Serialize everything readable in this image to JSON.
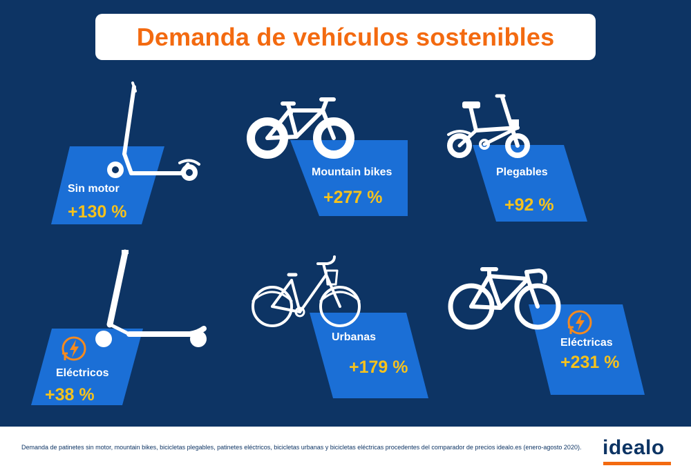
{
  "title": "Demanda de vehículos sostenibles",
  "colors": {
    "background": "#0d3464",
    "card": "#1b6fd6",
    "title": "#f36a10",
    "value": "#f6c21c",
    "icon_orange": "#f58a1f"
  },
  "items": [
    {
      "label": "Sin motor",
      "value": "+130 %",
      "icon": "kick-scooter-icon"
    },
    {
      "label": "Mountain bikes",
      "value": "+277 %",
      "icon": "mountain-bike-icon"
    },
    {
      "label": "Plegables",
      "value": "+92 %",
      "icon": "folding-bike-icon"
    },
    {
      "label": "Eléctricos",
      "value": "+38 %",
      "icon": "electric-scooter-icon"
    },
    {
      "label": "Urbanas",
      "value": "+179 %",
      "icon": "city-bike-icon"
    },
    {
      "label": "Eléctricas",
      "value": "+231 %",
      "icon": "electric-bike-icon"
    }
  ],
  "footer": {
    "note": "Demanda de patinetes sin motor, mountain bikes, bicicletas plegables, patinetes eléctricos, bicicletas urbanas y bicicletas eléctricas procedentes del comparador de precios idealo.es (enero-agosto 2020).",
    "logo": "idealo"
  }
}
